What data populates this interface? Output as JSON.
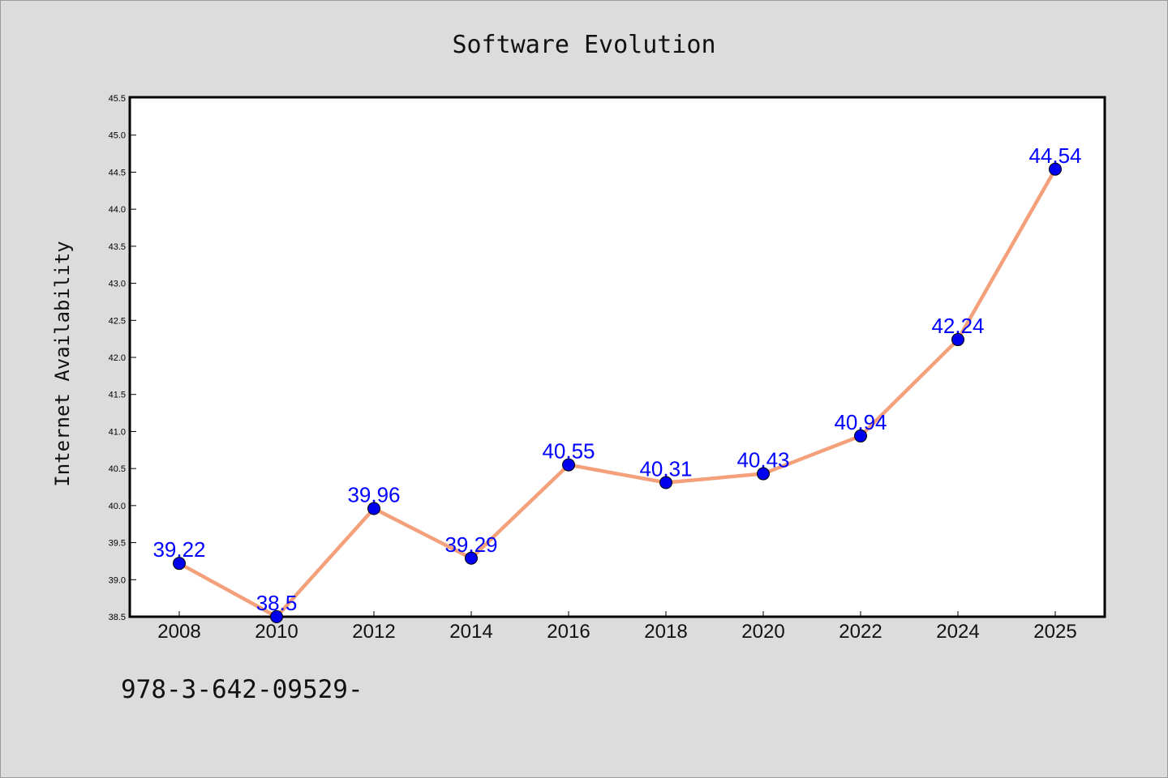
{
  "chart_data": {
    "type": "line",
    "title": "Software Evolution",
    "xlabel": "",
    "ylabel": "Internet Availability",
    "categories": [
      "2008",
      "2010",
      "2012",
      "2014",
      "2016",
      "2018",
      "2020",
      "2022",
      "2024",
      "2025"
    ],
    "series": [
      {
        "values": [
          39.22,
          38.5,
          39.96,
          39.29,
          40.55,
          40.31,
          40.43,
          40.94,
          42.24,
          44.54
        ],
        "labels": [
          "39.22",
          "38.5",
          "39.96",
          "39.29",
          "40.55",
          "40.31",
          "40.43",
          "40.94",
          "42.24",
          "44.54"
        ],
        "line_color": "#f4a07a",
        "marker_color": "#0000ee"
      }
    ],
    "ylim": [
      38.5,
      45.5
    ],
    "yticks": [
      "38.5",
      "39.0",
      "39.5",
      "40.0",
      "40.5",
      "41.0",
      "41.5",
      "42.0",
      "42.5",
      "43.0",
      "43.5",
      "44.0",
      "44.5",
      "45.0",
      "45.5"
    ],
    "grid": false,
    "label_color": "#0000ff"
  },
  "footer_text": "978-3-642-09529-"
}
